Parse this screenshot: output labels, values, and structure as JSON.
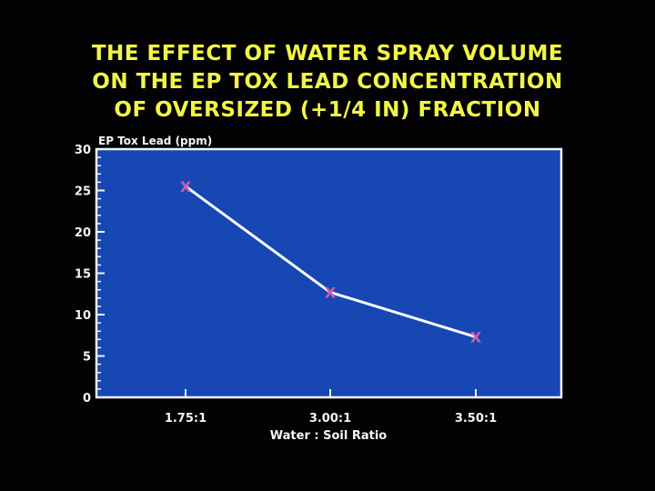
{
  "slide": {
    "title_lines": [
      "THE EFFECT OF WATER SPRAY VOLUME",
      "ON THE EP TOX LEAD CONCENTRATION",
      "OF OVERSIZED (+1/4 IN) FRACTION"
    ]
  },
  "chart_data": {
    "type": "line",
    "title": "THE EFFECT OF WATER SPRAY VOLUME ON THE EP TOX LEAD CONCENTRATION OF OVERSIZED (+1/4 IN) FRACTION",
    "xlabel": "Water : Soil Ratio",
    "ylabel": "EP Tox Lead (ppm)",
    "categories": [
      "1.75:1",
      "3.00:1",
      "3.50:1"
    ],
    "series": [
      {
        "values": [
          25.5,
          12.7,
          7.3
        ]
      }
    ],
    "ylim": [
      0,
      30
    ],
    "yticks": [
      0,
      5,
      10,
      15,
      20,
      25,
      30
    ],
    "marker": "X",
    "grid": false,
    "colors": {
      "background": "#030305",
      "plot_area": "#1747b3",
      "line": "#ffffff",
      "marker": "#c761b4",
      "title": "#f2f545",
      "text": "#f4f4f4"
    }
  }
}
